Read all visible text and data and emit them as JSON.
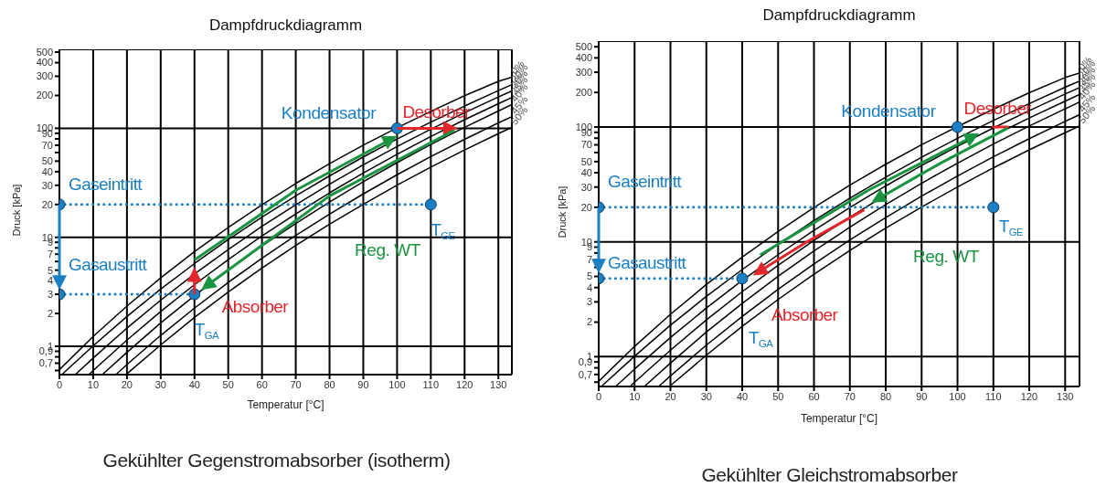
{
  "chart_data": [
    {
      "type": "line",
      "title": "Dampfdruckdiagramm",
      "xlabel": "Temperatur [°C]",
      "ylabel": "Druck [kPa]",
      "log": "y",
      "grid": "x",
      "xlim": [
        0,
        134
      ],
      "xticks": [
        0,
        10,
        20,
        30,
        40,
        50,
        60,
        70,
        80,
        90,
        100,
        110,
        120,
        130
      ],
      "ylim": [
        0.55,
        530
      ],
      "yticks": [
        {
          "value": 0.6,
          "label": null
        },
        {
          "value": 0.7,
          "label": "0,7"
        },
        {
          "value": 0.8,
          "label": null
        },
        {
          "value": 0.9,
          "label": "0,9"
        },
        1,
        2,
        3,
        4,
        5,
        {
          "value": 6,
          "label": null
        },
        7,
        {
          "value": 8,
          "label": null
        },
        9,
        10,
        20,
        30,
        40,
        50,
        {
          "value": 60,
          "label": null
        },
        70,
        {
          "value": 80,
          "label": null
        },
        90,
        100,
        200,
        300,
        400,
        500
      ],
      "ref_lines": [
        {
          "axis": "y",
          "value": 1,
          "color": "#000000"
        },
        {
          "axis": "y",
          "value": 10,
          "color": "#000000"
        },
        {
          "axis": "y",
          "value": 100,
          "color": "#000000"
        }
      ],
      "series": [
        {
          "name": "0%",
          "color": "#000000",
          "x": [
            0,
            10,
            20,
            30,
            40,
            50,
            60,
            70,
            80,
            90,
            100,
            110,
            120,
            130,
            134
          ],
          "values": [
            0.61,
            1.23,
            2.34,
            4.25,
            7.38,
            12.3,
            19.9,
            31.2,
            47.4,
            70.1,
            101,
            143,
            199,
            270,
            295
          ]
        },
        {
          "name": "20%",
          "color": "#000000",
          "x": [
            1,
            10,
            20,
            30,
            40,
            50,
            60,
            70,
            80,
            90,
            100,
            110,
            120,
            130,
            134
          ],
          "values": [
            0.56,
            1.01,
            1.88,
            3.35,
            5.74,
            9.53,
            15.3,
            24,
            36.6,
            54.6,
            79.8,
            114,
            160,
            222,
            251
          ]
        },
        {
          "name": "30%",
          "color": "#000000",
          "x": [
            5,
            10,
            20,
            30,
            40,
            50,
            60,
            70,
            80,
            90,
            100,
            110,
            120,
            130,
            134
          ],
          "values": [
            0.56,
            0.78,
            1.47,
            2.65,
            4.61,
            7.73,
            12.6,
            19.9,
            30.7,
            46.2,
            68,
            98.2,
            139,
            194,
            220
          ]
        },
        {
          "name": "35%",
          "color": "#000000",
          "x": [
            9,
            10,
            20,
            30,
            40,
            50,
            60,
            70,
            80,
            90,
            100,
            110,
            120,
            130,
            134
          ],
          "values": [
            0.56,
            0.6,
            1.14,
            2.09,
            3.68,
            6.25,
            10.3,
            16.4,
            25.6,
            38.9,
            57.8,
            84.1,
            120,
            168,
            192
          ]
        },
        {
          "name": "40%",
          "color": "#000000",
          "x": [
            13,
            20,
            30,
            40,
            50,
            60,
            70,
            80,
            90,
            100,
            110,
            120,
            130,
            134
          ],
          "values": [
            0.56,
            0.88,
            1.64,
            2.91,
            5.01,
            8.33,
            13.4,
            21.1,
            32.4,
            48.4,
            71.1,
            102,
            144,
            165
          ]
        },
        {
          "name": "45%",
          "color": "#000000",
          "x": [
            17,
            20,
            30,
            40,
            50,
            60,
            70,
            80,
            90,
            100,
            110,
            120,
            130,
            134
          ],
          "values": [
            0.56,
            0.68,
            1.26,
            2.24,
            3.86,
            6.42,
            10.4,
            16.3,
            25,
            37.5,
            55,
            79.2,
            112,
            128
          ]
        },
        {
          "name": "50%",
          "color": "#000000",
          "x": [
            20,
            30,
            40,
            50,
            60,
            70,
            80,
            90,
            100,
            110,
            120,
            130,
            134
          ],
          "values": [
            0.56,
            1.03,
            1.84,
            3.15,
            5.22,
            8.41,
            13.2,
            20.1,
            30.1,
            44.1,
            63.3,
            89.3,
            102
          ]
        },
        {
          "type": "line",
          "color": "#1b7fc4",
          "line_style": "dotted",
          "x": [
            0,
            110
          ],
          "values": [
            20,
            20
          ]
        },
        {
          "type": "line",
          "color": "#1b7fc4",
          "line_style": "dotted",
          "x": [
            0,
            40
          ],
          "values": [
            3,
            3
          ]
        },
        {
          "type": "scatter",
          "color": "#1b7fc4",
          "marker": "circle",
          "x": [
            0,
            0,
            40,
            110,
            100
          ],
          "values": [
            20,
            3,
            3,
            20,
            100
          ]
        }
      ],
      "annotations": [
        {
          "text": "Gaseintritt",
          "x": 0,
          "y": 20
        },
        {
          "text": "Gasaustritt",
          "x": 0,
          "y": 3
        },
        {
          "text": "T$_{GA}$",
          "x": 40,
          "y": 3
        },
        {
          "text": "T$_{GE}$",
          "x": 110,
          "y": 20
        },
        {
          "text": "Desorber",
          "x": 100,
          "y": 100
        },
        {
          "text": "Absorber",
          "x": 40,
          "y": 3
        },
        "Kondensator",
        "Reg. WT",
        "Gekühlter Gegenstromabsorber (isotherm)"
      ]
    },
    {
      "type": "line",
      "title": "Dampfdruckdiagramm",
      "xlabel": "Temperatur [°C]",
      "ylabel": "Druck [kPa]",
      "log": "y",
      "grid": "x",
      "xlim": [
        0,
        134
      ],
      "xticks": [
        0,
        10,
        20,
        30,
        40,
        50,
        60,
        70,
        80,
        90,
        100,
        110,
        120,
        130
      ],
      "ylim": [
        0.55,
        560
      ],
      "yticks": [
        {
          "value": 0.6,
          "label": null
        },
        {
          "value": 0.7,
          "label": "0,7"
        },
        {
          "value": 0.8,
          "label": null
        },
        {
          "value": 0.9,
          "label": "0,9"
        },
        1,
        2,
        3,
        4,
        5,
        {
          "value": 6,
          "label": null
        },
        7,
        {
          "value": 8,
          "label": null
        },
        9,
        10,
        20,
        30,
        40,
        50,
        {
          "value": 60,
          "label": null
        },
        70,
        {
          "value": 80,
          "label": null
        },
        90,
        100,
        200,
        300,
        400,
        500
      ],
      "ref_lines": [
        {
          "axis": "y",
          "value": 1,
          "color": "#000000"
        },
        {
          "axis": "y",
          "value": 10,
          "color": "#000000"
        },
        {
          "axis": "y",
          "value": 100,
          "color": "#000000"
        }
      ],
      "series": [
        {
          "name": "0%",
          "color": "#000000",
          "x": [
            0,
            10,
            20,
            30,
            40,
            50,
            60,
            70,
            80,
            90,
            100,
            110,
            120,
            130,
            134
          ],
          "values": [
            0.61,
            1.23,
            2.34,
            4.25,
            7.38,
            12.3,
            19.9,
            31.2,
            47.4,
            70.1,
            101,
            143,
            199,
            270,
            295
          ]
        },
        {
          "name": "20%",
          "color": "#000000",
          "x": [
            1,
            10,
            20,
            30,
            40,
            50,
            60,
            70,
            80,
            90,
            100,
            110,
            120,
            130,
            134
          ],
          "values": [
            0.56,
            1.01,
            1.88,
            3.35,
            5.74,
            9.53,
            15.3,
            24,
            36.6,
            54.6,
            79.8,
            114,
            160,
            222,
            251
          ]
        },
        {
          "name": "30%",
          "color": "#000000",
          "x": [
            5,
            10,
            20,
            30,
            40,
            50,
            60,
            70,
            80,
            90,
            100,
            110,
            120,
            130,
            134
          ],
          "values": [
            0.56,
            0.78,
            1.47,
            2.65,
            4.61,
            7.73,
            12.6,
            19.9,
            30.7,
            46.2,
            68,
            98.2,
            139,
            194,
            220
          ]
        },
        {
          "name": "35%",
          "color": "#000000",
          "x": [
            9,
            10,
            20,
            30,
            40,
            50,
            60,
            70,
            80,
            90,
            100,
            110,
            120,
            130,
            134
          ],
          "values": [
            0.56,
            0.6,
            1.14,
            2.09,
            3.68,
            6.25,
            10.3,
            16.4,
            25.6,
            38.9,
            57.8,
            84.1,
            120,
            168,
            192
          ]
        },
        {
          "name": "40%",
          "color": "#000000",
          "x": [
            13,
            20,
            30,
            40,
            50,
            60,
            70,
            80,
            90,
            100,
            110,
            120,
            130,
            134
          ],
          "values": [
            0.56,
            0.88,
            1.64,
            2.91,
            5.01,
            8.33,
            13.4,
            21.1,
            32.4,
            48.4,
            71.1,
            102,
            144,
            165
          ]
        },
        {
          "name": "45%",
          "color": "#000000",
          "x": [
            17,
            20,
            30,
            40,
            50,
            60,
            70,
            80,
            90,
            100,
            110,
            120,
            130,
            134
          ],
          "values": [
            0.56,
            0.68,
            1.26,
            2.24,
            3.86,
            6.42,
            10.4,
            16.3,
            25,
            37.5,
            55,
            79.2,
            112,
            128
          ]
        },
        {
          "name": "50%",
          "color": "#000000",
          "x": [
            20,
            30,
            40,
            50,
            60,
            70,
            80,
            90,
            100,
            110,
            120,
            130,
            134
          ],
          "values": [
            0.56,
            1.03,
            1.84,
            3.15,
            5.22,
            8.41,
            13.2,
            20.1,
            30.1,
            44.1,
            63.3,
            89.3,
            102
          ]
        },
        {
          "type": "line",
          "color": "#1b7fc4",
          "line_style": "dotted",
          "x": [
            0,
            110
          ],
          "values": [
            20,
            20
          ]
        },
        {
          "type": "line",
          "color": "#1b7fc4",
          "line_style": "dotted",
          "x": [
            0,
            40
          ],
          "values": [
            4.8,
            4.8
          ]
        },
        {
          "type": "line",
          "color": "#e3262b",
          "line_style": "solid",
          "x": [
            110,
            114
          ],
          "values": [
            100,
            100
          ]
        },
        {
          "type": "scatter",
          "color": "#1b7fc4",
          "marker": "circle",
          "x": [
            0,
            0,
            40,
            110,
            100
          ],
          "values": [
            20,
            4.8,
            4.8,
            20,
            100
          ]
        }
      ],
      "annotations": [
        {
          "text": "Gaseintritt",
          "x": 0,
          "y": 20
        },
        {
          "text": "Gasaustritt",
          "x": 0,
          "y": 4.8
        },
        {
          "text": "T$_{GA}$",
          "x": 40,
          "y": 4.8
        },
        {
          "text": "T$_{GE}$",
          "x": 110,
          "y": 20
        },
        {
          "text": "Desorber",
          "x": 100,
          "y": 100
        },
        {
          "text": "Absorber",
          "x": 40,
          "y": 4.8
        },
        "Kondensator",
        "Reg. WT",
        "Gekühlter Gleichstromabsorber"
      ]
    }
  ]
}
